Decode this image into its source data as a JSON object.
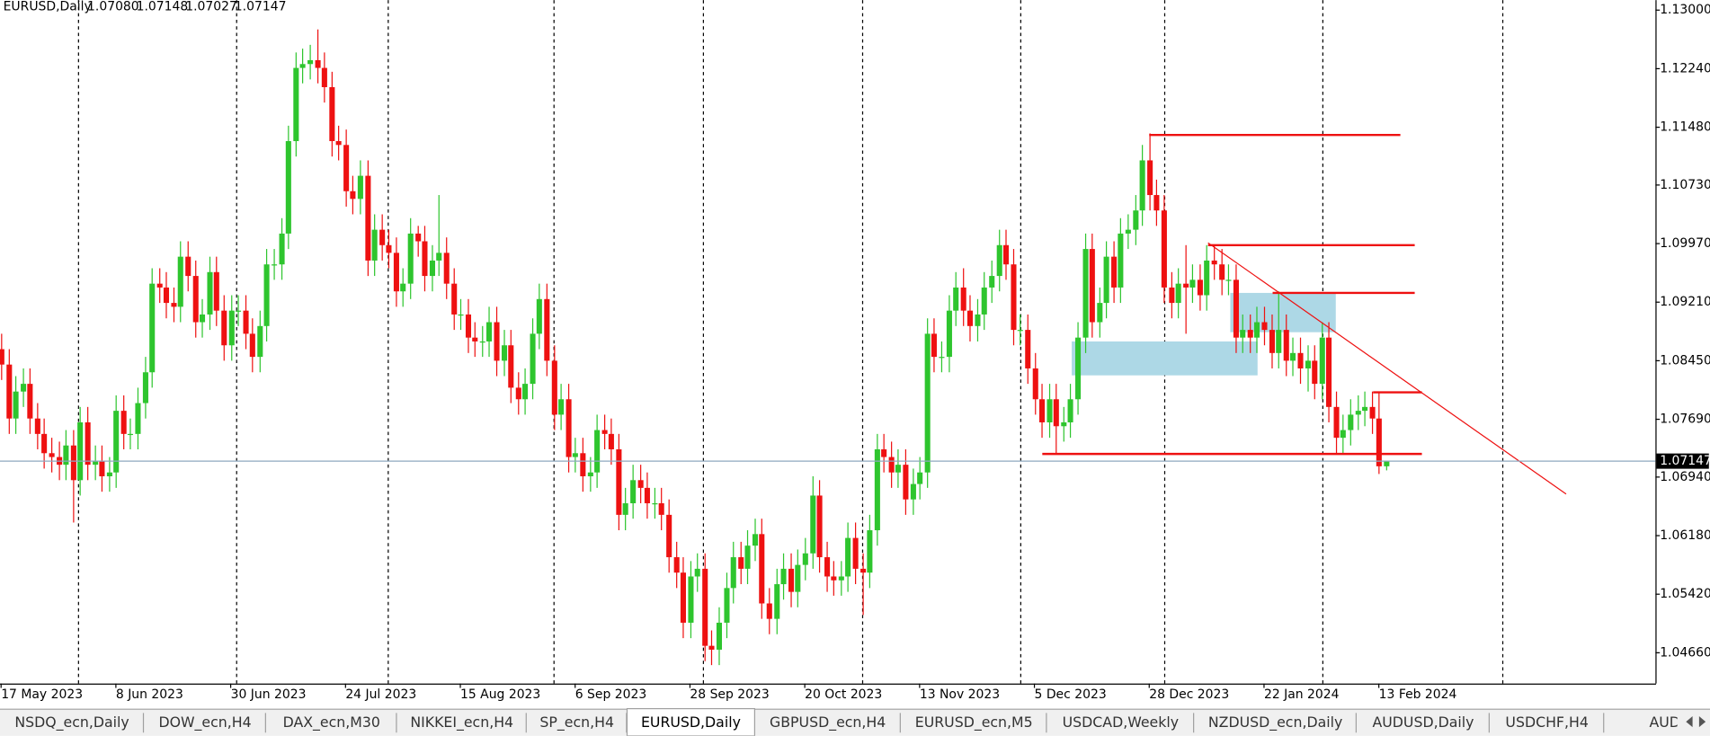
{
  "chart_data": {
    "type": "candlestick",
    "title": "EURUSD,Daily",
    "last_bar_labels": [
      "1.07080",
      "1.07148",
      "1.07027",
      "1.07147"
    ],
    "categories": [
      "17 May 2023",
      null,
      null,
      null,
      null,
      null,
      null,
      null,
      null,
      null,
      null,
      null,
      null,
      null,
      null,
      null,
      "8 Jun 2023",
      null,
      null,
      null,
      null,
      null,
      null,
      null,
      null,
      null,
      null,
      null,
      null,
      null,
      null,
      null,
      "30 Jun 2023",
      null,
      null,
      null,
      null,
      null,
      null,
      null,
      null,
      null,
      null,
      null,
      null,
      null,
      null,
      null,
      "24 Jul 2023",
      null,
      null,
      null,
      null,
      null,
      null,
      null,
      null,
      null,
      null,
      null,
      null,
      null,
      null,
      null,
      "15 Aug 2023",
      null,
      null,
      null,
      null,
      null,
      null,
      null,
      null,
      null,
      null,
      null,
      null,
      null,
      null,
      null,
      "6 Sep 2023",
      null,
      null,
      null,
      null,
      null,
      null,
      null,
      null,
      null,
      null,
      null,
      null,
      null,
      null,
      null,
      "28 Sep 2023",
      null,
      null,
      null,
      null,
      null,
      null,
      null,
      null,
      null,
      null,
      null,
      null,
      null,
      null,
      null,
      "20 Oct 2023",
      null,
      null,
      null,
      null,
      null,
      null,
      null,
      null,
      null,
      null,
      null,
      null,
      null,
      null,
      null,
      "13 Nov 2023",
      null,
      null,
      null,
      null,
      null,
      null,
      null,
      null,
      null,
      null,
      null,
      null,
      null,
      null,
      null,
      "5 Dec 2023",
      null,
      null,
      null,
      null,
      null,
      null,
      null,
      null,
      null,
      null,
      null,
      null,
      null,
      null,
      null,
      "28 Dec 2023",
      null,
      null,
      null,
      null,
      null,
      null,
      null,
      null,
      null,
      null,
      null,
      null,
      null,
      null,
      null,
      "22 Jan 2024",
      null,
      null,
      null,
      null,
      null,
      null,
      null,
      null,
      null,
      null,
      null,
      null,
      null,
      null,
      null,
      "13 Feb 2024",
      null
    ],
    "open": [
      1.086,
      1.084,
      1.077,
      1.0805,
      1.0815,
      1.077,
      1.075,
      1.0725,
      1.072,
      1.071,
      1.0735,
      1.069,
      1.0765,
      1.071,
      1.0715,
      1.0695,
      1.07,
      1.078,
      1.075,
      1.075,
      1.079,
      1.083,
      1.0945,
      1.094,
      1.092,
      1.0915,
      1.098,
      1.0955,
      1.0895,
      1.0905,
      1.096,
      1.091,
      1.0865,
      1.091,
      1.091,
      1.088,
      1.085,
      1.089,
      1.097,
      1.097,
      1.101,
      1.113,
      1.1225,
      1.123,
      1.1235,
      1.1225,
      1.12,
      1.113,
      1.1125,
      1.1065,
      1.1055,
      1.1085,
      1.0975,
      1.1015,
      1.0995,
      1.0985,
      1.0935,
      1.0945,
      1.101,
      1.1,
      1.0955,
      1.0975,
      1.0985,
      1.0945,
      1.0905,
      1.0905,
      1.0875,
      1.087,
      1.087,
      1.0895,
      1.0845,
      1.0865,
      1.081,
      1.0795,
      1.0815,
      1.088,
      1.0925,
      1.0845,
      1.0775,
      1.0795,
      1.072,
      1.0725,
      1.0695,
      1.07,
      1.0755,
      1.075,
      1.073,
      1.0645,
      1.066,
      1.069,
      1.068,
      1.066,
      1.066,
      1.0645,
      1.059,
      1.057,
      1.0505,
      1.0565,
      1.0575,
      1.0475,
      1.047,
      1.0505,
      1.055,
      1.059,
      1.0575,
      1.0605,
      1.062,
      1.053,
      1.051,
      1.0555,
      1.0575,
      1.0545,
      1.058,
      1.0595,
      1.067,
      1.059,
      1.0565,
      1.056,
      1.0565,
      1.0615,
      1.0575,
      1.057,
      1.0625,
      1.073,
      1.072,
      1.07,
      1.071,
      1.0665,
      1.0685,
      1.07,
      1.088,
      1.085,
      1.085,
      1.091,
      1.094,
      1.091,
      1.089,
      1.0905,
      1.094,
      1.0955,
      1.0995,
      1.097,
      1.0885,
      1.0885,
      1.0835,
      1.0795,
      1.0765,
      1.0795,
      1.076,
      1.0765,
      1.0795,
      1.0875,
      1.099,
      1.0895,
      1.092,
      1.098,
      1.094,
      1.101,
      1.1015,
      1.104,
      1.1105,
      1.106,
      1.104,
      1.094,
      1.092,
      1.0945,
      1.094,
      1.095,
      1.093,
      1.0975,
      1.097,
      1.095,
      1.095,
      1.0875,
      1.0885,
      1.0875,
      1.0895,
      1.0885,
      1.0855,
      1.0885,
      1.0845,
      1.0855,
      1.0835,
      1.0845,
      1.0815,
      1.0875,
      1.0785,
      1.0745,
      1.0755,
      1.0775,
      1.078,
      1.0785,
      1.077,
      1.0708
    ],
    "high": [
      1.088,
      1.086,
      1.0825,
      1.0835,
      1.0835,
      1.079,
      1.077,
      1.0745,
      1.074,
      1.0755,
      1.0755,
      1.0785,
      1.0785,
      1.0735,
      1.0735,
      1.072,
      1.08,
      1.08,
      1.077,
      1.081,
      1.085,
      1.0965,
      1.0965,
      1.096,
      1.094,
      1.1,
      1.1,
      1.0975,
      1.0925,
      1.098,
      1.098,
      1.093,
      1.093,
      1.093,
      1.093,
      1.09,
      1.091,
      1.099,
      1.099,
      1.103,
      1.115,
      1.1245,
      1.125,
      1.1255,
      1.1275,
      1.1245,
      1.122,
      1.115,
      1.1145,
      1.1085,
      1.1105,
      1.1105,
      1.1035,
      1.1035,
      1.1015,
      1.1005,
      1.0965,
      1.103,
      1.102,
      1.102,
      1.0995,
      1.106,
      1.1005,
      1.0965,
      1.0925,
      1.0925,
      1.0895,
      1.089,
      1.0915,
      1.0915,
      1.0885,
      1.0885,
      1.083,
      1.0835,
      1.09,
      1.0945,
      1.0945,
      1.0865,
      1.0815,
      1.0815,
      1.0745,
      1.0745,
      1.072,
      1.0775,
      1.0775,
      1.077,
      1.075,
      1.068,
      1.071,
      1.071,
      1.07,
      1.068,
      1.068,
      1.0665,
      1.061,
      1.059,
      1.0585,
      1.0595,
      1.0595,
      1.0495,
      1.0525,
      1.057,
      1.061,
      1.061,
      1.0625,
      1.064,
      1.064,
      1.055,
      1.0575,
      1.0595,
      1.0595,
      1.06,
      1.0615,
      1.0695,
      1.069,
      1.061,
      1.0585,
      1.0585,
      1.0635,
      1.0635,
      1.0595,
      1.0645,
      1.075,
      1.075,
      1.074,
      1.073,
      1.073,
      1.0705,
      1.072,
      1.09,
      1.09,
      1.087,
      1.093,
      1.096,
      1.0965,
      1.093,
      1.0925,
      1.096,
      1.0975,
      1.1015,
      1.1015,
      1.099,
      1.0905,
      1.0905,
      1.0855,
      1.0815,
      1.0815,
      1.0815,
      1.0785,
      1.0815,
      1.0895,
      1.101,
      1.101,
      1.094,
      1.1,
      1.1,
      1.103,
      1.1035,
      1.106,
      1.1125,
      1.114,
      1.108,
      1.106,
      1.096,
      1.0965,
      1.0995,
      1.097,
      1.097,
      1.0995,
      1.0995,
      1.099,
      1.097,
      1.097,
      1.0905,
      1.0905,
      1.0915,
      1.0915,
      1.0905,
      1.0935,
      1.0905,
      1.0875,
      1.0875,
      1.0865,
      1.0865,
      1.0895,
      1.0895,
      1.0805,
      1.0775,
      1.0795,
      1.08,
      1.0805,
      1.0805,
      1.0805,
      1.07148
    ],
    "low": [
      1.082,
      1.075,
      1.075,
      1.0785,
      1.075,
      1.073,
      1.0705,
      1.07,
      1.069,
      1.069,
      1.0635,
      1.067,
      1.069,
      1.069,
      1.0675,
      1.0675,
      1.068,
      1.073,
      1.073,
      1.073,
      1.077,
      1.081,
      1.092,
      1.09,
      1.0895,
      1.0895,
      1.0935,
      1.0875,
      1.0875,
      1.0885,
      1.089,
      1.0845,
      1.0845,
      1.089,
      1.086,
      1.083,
      1.083,
      1.087,
      1.095,
      1.095,
      1.099,
      1.111,
      1.1205,
      1.121,
      1.1205,
      1.118,
      1.111,
      1.1105,
      1.1045,
      1.1035,
      1.1035,
      1.0955,
      1.0955,
      1.0975,
      1.0965,
      1.0915,
      1.0915,
      1.0925,
      1.098,
      1.0935,
      1.0935,
      1.0955,
      1.0925,
      1.0885,
      1.0885,
      1.0855,
      1.085,
      1.085,
      1.085,
      1.0825,
      1.0825,
      1.079,
      1.0775,
      1.0775,
      1.0795,
      1.086,
      1.0825,
      1.0755,
      1.0755,
      1.07,
      1.07,
      1.0675,
      1.0675,
      1.068,
      1.073,
      1.071,
      1.0625,
      1.0625,
      1.064,
      1.066,
      1.064,
      1.064,
      1.0625,
      1.057,
      1.055,
      1.0485,
      1.0485,
      1.0545,
      1.0455,
      1.045,
      1.045,
      1.0485,
      1.053,
      1.0555,
      1.0555,
      1.0585,
      1.051,
      1.049,
      1.049,
      1.0535,
      1.0525,
      1.0525,
      1.056,
      1.0575,
      1.057,
      1.0545,
      1.054,
      1.054,
      1.0545,
      1.0555,
      1.0515,
      1.055,
      1.0605,
      1.07,
      1.068,
      1.068,
      1.0645,
      1.0645,
      1.0665,
      1.068,
      1.083,
      1.083,
      1.083,
      1.089,
      1.089,
      1.087,
      1.087,
      1.0885,
      1.092,
      1.0935,
      1.095,
      1.0865,
      1.0865,
      1.0815,
      1.0775,
      1.0745,
      1.0745,
      1.0725,
      1.074,
      1.0745,
      1.0775,
      1.0855,
      1.0875,
      1.0875,
      1.09,
      1.092,
      1.092,
      1.099,
      1.0995,
      1.102,
      1.104,
      1.102,
      1.092,
      1.09,
      1.09,
      1.088,
      1.092,
      1.091,
      1.091,
      1.095,
      1.093,
      1.093,
      1.0855,
      1.0855,
      1.0855,
      1.0855,
      1.0865,
      1.0835,
      1.0835,
      1.0825,
      1.0825,
      1.0815,
      1.0805,
      1.0795,
      1.0795,
      1.0765,
      1.0725,
      1.0725,
      1.0735,
      1.0755,
      1.076,
      1.075,
      1.0698,
      1.07027
    ],
    "close": [
      1.084,
      1.077,
      1.0805,
      1.0815,
      1.077,
      1.075,
      1.0725,
      1.072,
      1.071,
      1.0735,
      1.069,
      1.0765,
      1.071,
      1.0715,
      1.0695,
      1.07,
      1.078,
      1.075,
      1.075,
      1.079,
      1.083,
      1.0945,
      1.094,
      1.092,
      1.0915,
      1.098,
      1.0955,
      1.0895,
      1.0905,
      1.096,
      1.091,
      1.0865,
      1.091,
      1.091,
      1.088,
      1.085,
      1.089,
      1.097,
      1.097,
      1.101,
      1.113,
      1.1225,
      1.123,
      1.1235,
      1.1225,
      1.12,
      1.113,
      1.1125,
      1.1065,
      1.1055,
      1.1085,
      1.0975,
      1.1015,
      1.0995,
      1.0985,
      1.0935,
      1.0945,
      1.101,
      1.1,
      1.0955,
      1.0975,
      1.0985,
      1.0945,
      1.0905,
      1.0905,
      1.0875,
      1.087,
      1.087,
      1.0895,
      1.0845,
      1.0865,
      1.081,
      1.0795,
      1.0815,
      1.088,
      1.0925,
      1.0845,
      1.0775,
      1.0795,
      1.072,
      1.0725,
      1.0695,
      1.07,
      1.0755,
      1.075,
      1.073,
      1.0645,
      1.066,
      1.069,
      1.068,
      1.066,
      1.066,
      1.0645,
      1.059,
      1.057,
      1.0505,
      1.0565,
      1.0575,
      1.0475,
      1.047,
      1.0505,
      1.055,
      1.059,
      1.0575,
      1.0605,
      1.062,
      1.053,
      1.051,
      1.0555,
      1.0575,
      1.0545,
      1.058,
      1.0595,
      1.067,
      1.059,
      1.0565,
      1.056,
      1.0565,
      1.0615,
      1.0575,
      1.057,
      1.0625,
      1.073,
      1.072,
      1.07,
      1.071,
      1.0665,
      1.0685,
      1.07,
      1.088,
      1.085,
      1.085,
      1.091,
      1.094,
      1.091,
      1.089,
      1.0905,
      1.094,
      1.0955,
      1.0995,
      1.097,
      1.0885,
      1.0885,
      1.0835,
      1.0795,
      1.0765,
      1.0795,
      1.076,
      1.0765,
      1.0795,
      1.0875,
      1.099,
      1.0895,
      1.092,
      1.098,
      1.094,
      1.101,
      1.1015,
      1.104,
      1.1105,
      1.106,
      1.104,
      1.094,
      1.092,
      1.0945,
      1.094,
      1.095,
      1.093,
      1.0975,
      1.097,
      1.095,
      1.095,
      1.0875,
      1.0885,
      1.0875,
      1.0895,
      1.0885,
      1.0855,
      1.0885,
      1.0845,
      1.0855,
      1.0835,
      1.0845,
      1.0815,
      1.0875,
      1.0785,
      1.0745,
      1.0755,
      1.0775,
      1.078,
      1.0785,
      1.077,
      1.0708,
      1.07147
    ],
    "up_color": "#2ec52e",
    "down_color": "#ee1111",
    "xlim": [
      -0.15,
      230.55
    ],
    "ylim": [
      1.0426,
      1.1313
    ],
    "yticks": [
      {
        "value": 1.13,
        "label": "1.13000"
      },
      {
        "value": 1.1224,
        "label": "1.12240"
      },
      {
        "value": 1.1148,
        "label": "1.11480"
      },
      {
        "value": 1.1073,
        "label": "1.10730"
      },
      {
        "value": 1.0997,
        "label": "1.09970"
      },
      {
        "value": 1.0921,
        "label": "1.09210"
      },
      {
        "value": 1.0845,
        "label": "1.08450"
      },
      {
        "value": 1.0769,
        "label": "1.07690"
      },
      {
        "value": 1.0694,
        "label": "1.06940"
      },
      {
        "value": 1.0618,
        "label": "1.06180"
      },
      {
        "value": 1.0542,
        "label": "1.05420"
      },
      {
        "value": 1.0466,
        "label": "1.04660"
      }
    ],
    "grid": false,
    "bid": {
      "value": 1.07147,
      "label": "1.07147"
    },
    "bid_color": "#8fa8bf",
    "annotation_color": "#ee1111",
    "zone_color": "#add8e6",
    "levels": [
      {
        "price": 1.1138,
        "start": 160,
        "end": 195
      },
      {
        "price": 1.0995,
        "start": 168.2,
        "end": 197
      },
      {
        "price": 1.0933,
        "start": 177.2,
        "end": 197
      },
      {
        "price": 1.0804,
        "start": 191.2,
        "end": 198
      },
      {
        "price": 1.0724,
        "start": 145.1,
        "end": 198
      }
    ],
    "zones": [
      {
        "top": 1.087,
        "bottom": 1.0826,
        "start": 149.2,
        "end": 175.1
      },
      {
        "top": 1.0933,
        "bottom": 1.0882,
        "start": 171.3,
        "end": 186.0
      }
    ],
    "trendline": {
      "price_start": 1.0998,
      "price_end": 1.0672,
      "start": 168.2,
      "end": 218.1
    }
  },
  "tabs": [
    "NSDQ_ecn,Daily",
    "DOW_ecn,H4",
    "DAX_ecn,M30",
    "NIKKEI_ecn,H4",
    "SP_ecn,H4",
    "EURUSD,Daily",
    "GBPUSD_ecn,H4",
    "EURUSD_ecn,M5",
    "USDCAD,Weekly",
    "NZDUSD_ecn,Daily",
    "AUDUSD,Daily",
    "USDCHF,H4",
    "AUDCA"
  ],
  "active_tab": 5
}
